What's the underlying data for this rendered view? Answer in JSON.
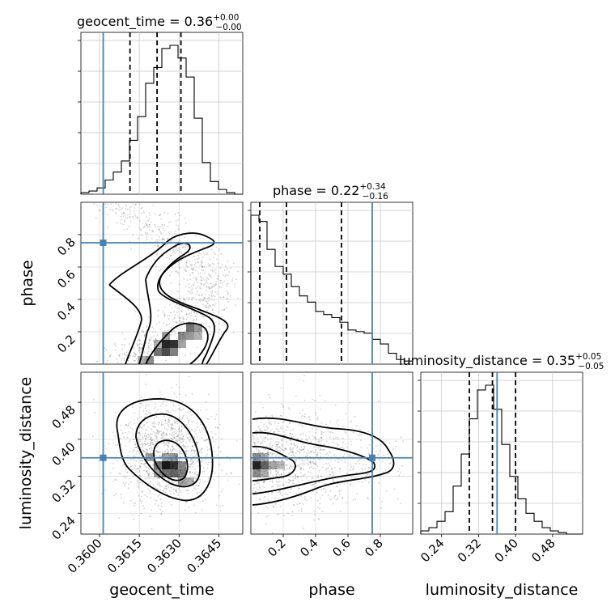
{
  "chart_data": {
    "type": "corner",
    "truth_color": "#4682b4",
    "parameters": [
      {
        "name": "geocent_time",
        "label": "geocent_time",
        "range": [
          0.3593,
          0.3654
        ],
        "ticks": [
          "0.3600",
          "0.3615",
          "0.3630",
          "0.3645"
        ],
        "tick_values": [
          0.36,
          0.3615,
          0.363,
          0.3645
        ],
        "truth": 0.36014,
        "title": {
          "prefix": "geocent_time = 0.36",
          "plus": "+0.00",
          "minus": "−0.00"
        },
        "quantiles": [
          0.36115,
          0.36217,
          0.36307
        ],
        "hist": {
          "edges_start": 0.3593,
          "bin_width": 0.000305,
          "counts": [
            1,
            2,
            4,
            9,
            14,
            21,
            34,
            49,
            70,
            80,
            92,
            94,
            86,
            74,
            48,
            20,
            8,
            3,
            1,
            0
          ]
        }
      },
      {
        "name": "phase",
        "label": "phase",
        "range": [
          0.0,
          1.0
        ],
        "ticks": [
          "0.2",
          "0.4",
          "0.6",
          "0.8"
        ],
        "tick_values": [
          0.2,
          0.4,
          0.6,
          0.8
        ],
        "truth": 0.75,
        "title": {
          "prefix": "phase = 0.22",
          "plus": "+0.34",
          "minus": "−0.16"
        },
        "quantiles": [
          0.055,
          0.22,
          0.56
        ],
        "hist": {
          "edges_start": 0.0,
          "bin_width": 0.05,
          "counts": [
            96,
            92,
            74,
            63,
            58,
            50,
            44,
            40,
            34,
            32,
            30,
            27,
            22,
            21,
            20,
            16,
            13,
            7,
            3,
            2
          ]
        }
      },
      {
        "name": "luminosity_distance",
        "label": "luminosity_distance",
        "range": [
          0.195,
          0.545
        ],
        "ticks": [
          "0.24",
          "0.32",
          "0.40",
          "0.48"
        ],
        "tick_values": [
          0.24,
          0.32,
          0.4,
          0.48
        ],
        "truth": 0.36,
        "title": {
          "prefix": "luminosity_distance = 0.35",
          "plus": "+0.05",
          "minus": "−0.05"
        },
        "quantiles": [
          0.3,
          0.35,
          0.4
        ],
        "hist": {
          "edges_start": 0.195,
          "bin_width": 0.0175,
          "counts": [
            2,
            4,
            8,
            14,
            30,
            50,
            72,
            90,
            93,
            78,
            56,
            36,
            22,
            13,
            8,
            4,
            2,
            1,
            0,
            0
          ]
        }
      }
    ],
    "panel_titles_note": "",
    "grid": true
  }
}
